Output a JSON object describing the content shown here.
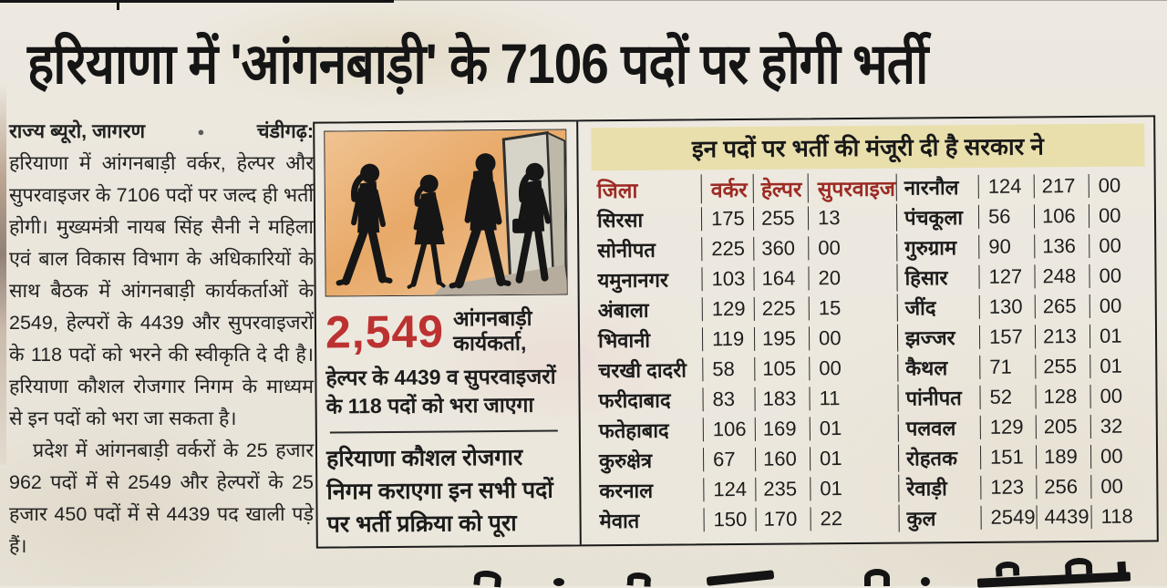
{
  "headline": "हरियाणा में 'आंगनबाड़ी' के 7106 पदों पर होगी भर्ती",
  "article": {
    "byline": "राज्य ब्यूरो, जागरण",
    "bullet": "●",
    "dateline": "चंडीगढ़:",
    "para1": "हरियाणा में आंगनबाड़ी वर्कर, हेल्पर और सुपरवाइजर के 7106 पदों पर जल्द ही भर्ती होगी। मुख्यमंत्री नायब सिंह सैनी ने महिला एवं बाल विकास विभाग के अधिकारियों के साथ बैठक में आंगनबाड़ी कार्यकर्ताओं के 2549, हेल्परों के 4439 और सुपरवाइजरों के 118 पदों को भरने की स्वीकृति दे दी है। हरियाणा कौशल रोजगार निगम के माध्यम से इन पदों को भरा जा सकता है।",
    "para2": "प्रदेश में आंगनबाड़ी वर्करों के 25 हजार 962 पदों में से 2549 और हेल्परों के 25 हजार 450 पदों में से 4439 पद खाली पड़े हैं।"
  },
  "infobox": {
    "big_number": "2,549",
    "big_number_label": "आंगनबाड़ी कार्यकर्ता,",
    "sub_text": "हेल्पर के 4439 व सुपरवाइजरों के 118 पदों को भरा जाएगा",
    "footer_text": "हरियाणा कौशल रोजगार निगम कराएगा इन सभी पदों पर भर्ती प्रक्रिया को पूरा"
  },
  "table": {
    "title": "इन पदों पर भर्ती की मंजूरी दी है सरकार ने",
    "headers": [
      "जिला",
      "वर्कर",
      "हेल्पर",
      "सुपरवाइजर"
    ],
    "left_rows": [
      [
        "सिरसा",
        "175",
        "255",
        "13"
      ],
      [
        "सोनीपत",
        "225",
        "360",
        "00"
      ],
      [
        "यमुनानगर",
        "103",
        "164",
        "20"
      ],
      [
        "अंबाला",
        "129",
        "225",
        "15"
      ],
      [
        "भिवानी",
        "119",
        "195",
        "00"
      ],
      [
        "चरखी दादरी",
        "58",
        "105",
        "00"
      ],
      [
        "फरीदाबाद",
        "83",
        "183",
        "11"
      ],
      [
        "फतेहाबाद",
        "106",
        "169",
        "01"
      ],
      [
        "कुरुक्षेत्र",
        "67",
        "160",
        "01"
      ],
      [
        "करनाल",
        "124",
        "235",
        "01"
      ],
      [
        "मेवात",
        "150",
        "170",
        "22"
      ]
    ],
    "right_rows": [
      [
        "नारनौल",
        "124",
        "217",
        "00"
      ],
      [
        "पंचकूला",
        "56",
        "106",
        "00"
      ],
      [
        "गुरुग्राम",
        "90",
        "136",
        "00"
      ],
      [
        "हिसार",
        "127",
        "248",
        "00"
      ],
      [
        "जींद",
        "130",
        "265",
        "00"
      ],
      [
        "झज्जर",
        "157",
        "213",
        "01"
      ],
      [
        "कैथल",
        "71",
        "255",
        "01"
      ],
      [
        "पांनीपत",
        "52",
        "128",
        "00"
      ],
      [
        "पलवल",
        "129",
        "205",
        "32"
      ],
      [
        "रोहतक",
        "151",
        "189",
        "00"
      ],
      [
        "रेवाड़ी",
        "123",
        "256",
        "00"
      ],
      [
        "कुल",
        "2549",
        "4439",
        "118"
      ]
    ]
  },
  "colors": {
    "accent_red": "#9c2b24",
    "big_number_red": "#bc3231",
    "title_strip_yellow": "#e9dfad",
    "newsprint": "#eae5db"
  }
}
